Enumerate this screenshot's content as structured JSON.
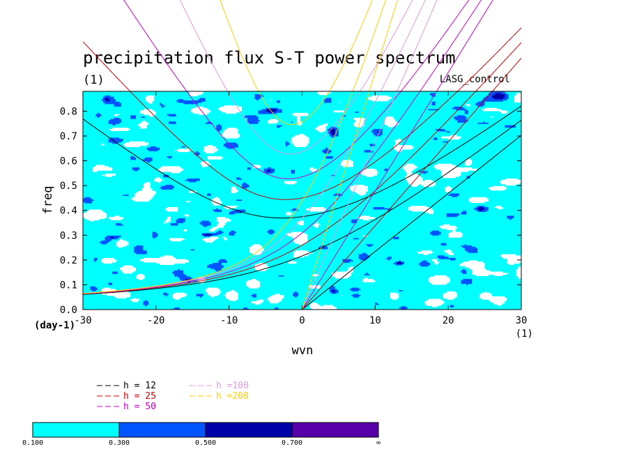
{
  "chart_data": {
    "type": "heatmap",
    "title": "precipitation flux S-T power spectrum",
    "units_label": "(1)",
    "dataset_label": "LASG_control",
    "xlabel": "wvn",
    "ylabel": "freq",
    "x_unit_label": "(1)",
    "y_unit_label": "(day-1)",
    "xlim": [
      -30,
      30
    ],
    "ylim": [
      0.0,
      0.88
    ],
    "xticks": [
      -30,
      -20,
      -10,
      0,
      10,
      20,
      30
    ],
    "yticks": [
      0.0,
      0.1,
      0.2,
      0.3,
      0.4,
      0.5,
      0.6,
      0.7,
      0.8
    ],
    "xtick_labels": [
      "-30",
      "-20",
      "-10",
      "0",
      "10",
      "20",
      "30"
    ],
    "ytick_labels": [
      "0.0",
      "0.1",
      "0.2",
      "0.3",
      "0.4",
      "0.5",
      "0.6",
      "0.7",
      "0.8"
    ],
    "contour_levels": [
      0.1,
      0.3,
      0.5,
      0.7
    ],
    "colorbar": {
      "labels": [
        "0.100",
        "0.300",
        "0.500",
        "0.700",
        "∞"
      ],
      "colors": [
        "#00ffff",
        "#0055ff",
        "#0000a8",
        "#5500a8"
      ]
    },
    "dispersion_curves": [
      {
        "name": "h = 12",
        "equivalent_depth_m": 12,
        "color": "#000000"
      },
      {
        "name": "h = 25",
        "equivalent_depth_m": 25,
        "color": "#cc0000"
      },
      {
        "name": "h = 50",
        "equivalent_depth_m": 50,
        "color": "#cc00cc"
      },
      {
        "name": "h =100",
        "equivalent_depth_m": 100,
        "color": "#e099e0"
      },
      {
        "name": "h =200",
        "equivalent_depth_m": 200,
        "color": "#ffcc00"
      }
    ],
    "legend_placement": "below-left",
    "grid": false
  }
}
